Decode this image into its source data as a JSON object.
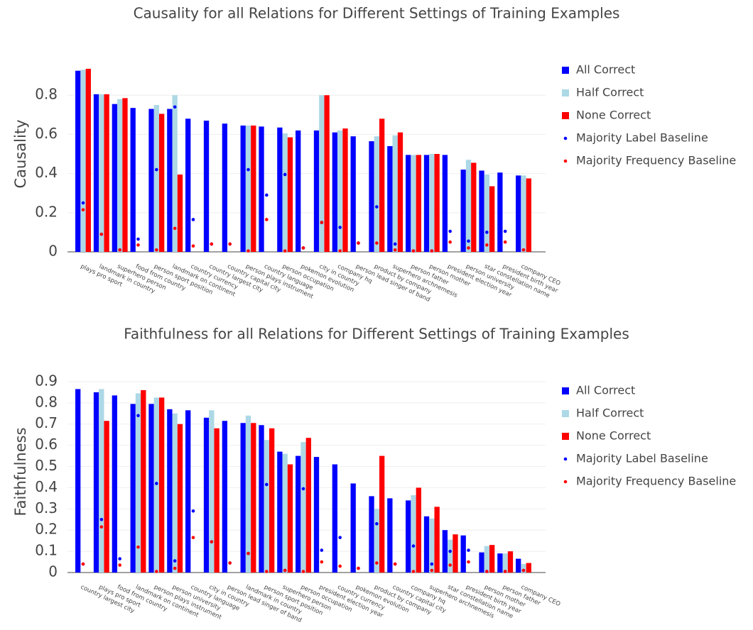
{
  "chart_data": [
    {
      "type": "bar",
      "title": "Causality for all Relations for Different Settings of Training Examples",
      "y_label": "Causality",
      "categories": [
        "plays pro sport",
        "landmark in country",
        "superhero person",
        "food from country",
        "person sport position",
        "landmark on continent",
        "country currency",
        "country largest city",
        "country capital city",
        "person plays instrument",
        "country language",
        "person occupation",
        "pokemon evolution",
        "city in country",
        "company hq",
        "person lead singer of band",
        "product by company",
        "superhero archnemesis",
        "person father",
        "person mother",
        "president election year",
        "person university",
        "star constellation name",
        "president birth year",
        "company CEO"
      ],
      "series": [
        {
          "name": "All Correct",
          "kind": "bar",
          "color": "#0000ff",
          "values": [
            0.925,
            0.805,
            0.755,
            0.735,
            0.73,
            0.73,
            0.68,
            0.67,
            0.655,
            0.645,
            0.64,
            0.635,
            0.62,
            0.62,
            0.61,
            0.59,
            0.565,
            0.54,
            0.495,
            0.495,
            0.495,
            0.42,
            0.415,
            0.405,
            0.39
          ]
        },
        {
          "name": "Half Correct",
          "kind": "bar",
          "color": "#add8e6",
          "values": [
            0.93,
            0.805,
            0.78,
            null,
            0.75,
            0.8,
            null,
            null,
            null,
            0.645,
            null,
            0.605,
            null,
            0.8,
            0.62,
            null,
            0.59,
            0.595,
            0.495,
            0.5,
            null,
            0.47,
            0.395,
            null,
            0.39
          ]
        },
        {
          "name": "None Correct",
          "kind": "bar",
          "color": "#ff0000",
          "values": [
            0.935,
            0.805,
            0.785,
            null,
            0.705,
            0.395,
            null,
            null,
            null,
            0.645,
            null,
            0.585,
            null,
            0.8,
            0.63,
            null,
            0.68,
            0.61,
            0.495,
            0.5,
            null,
            0.455,
            0.335,
            null,
            0.375
          ]
        },
        {
          "name": "Majority Label Baseline",
          "kind": "dot",
          "color": "#0000ff",
          "values": [
            0.25,
            0.09,
            0.01,
            0.065,
            0.42,
            0.74,
            0.165,
            0.04,
            0.04,
            0.42,
            0.29,
            0.395,
            0.02,
            0.15,
            0.125,
            0.045,
            0.23,
            0.04,
            0.005,
            0.005,
            0.105,
            0.055,
            0.1,
            0.105,
            0.01
          ]
        },
        {
          "name": "Majority Frequency Baseline",
          "kind": "dot",
          "color": "#ff0000",
          "values": [
            0.215,
            0.09,
            0.01,
            0.035,
            0.01,
            0.12,
            0.03,
            0.04,
            0.04,
            0.005,
            0.165,
            0.005,
            0.02,
            0.15,
            0.005,
            0.045,
            0.045,
            0.01,
            0.005,
            0.005,
            0.05,
            0.02,
            0.035,
            0.05,
            0.01
          ]
        }
      ],
      "ylim": [
        0,
        1.0
      ],
      "yticks": [
        0,
        0.2,
        0.4,
        0.6,
        0.8
      ],
      "grid": true
    },
    {
      "type": "bar",
      "title": "Faithfulness for all Relations for Different Settings of Training Examples",
      "y_label": "Faithfulness",
      "categories": [
        "country largest city",
        "plays pro sport",
        "food from country",
        "landmark on continent",
        "person plays instrument",
        "person university",
        "country language",
        "city in country",
        "person lead singer of band",
        "landmark in country",
        "person sport position",
        "superhero person",
        "person occupation",
        "president election year",
        "country currency",
        "pokemon evolution",
        "product by company",
        "country capital city",
        "company hq",
        "superhero archnemesis",
        "star constellation name",
        "president birth year",
        "person mother",
        "person father",
        "company CEO"
      ],
      "series": [
        {
          "name": "All Correct",
          "kind": "bar",
          "color": "#0000ff",
          "values": [
            0.865,
            0.85,
            0.835,
            0.795,
            0.795,
            0.77,
            0.765,
            0.73,
            0.715,
            0.705,
            0.695,
            0.57,
            0.55,
            0.545,
            0.51,
            0.42,
            0.36,
            0.35,
            0.34,
            0.265,
            0.2,
            0.175,
            0.095,
            0.09,
            0.065
          ]
        },
        {
          "name": "Half Correct",
          "kind": "bar",
          "color": "#add8e6",
          "values": [
            null,
            0.865,
            null,
            0.845,
            0.825,
            0.75,
            null,
            0.765,
            null,
            0.74,
            0.625,
            0.56,
            0.615,
            null,
            null,
            null,
            0.3,
            null,
            0.365,
            0.255,
            0.155,
            null,
            0.125,
            0.09,
            0.04
          ]
        },
        {
          "name": "None Correct",
          "kind": "bar",
          "color": "#ff0000",
          "values": [
            null,
            0.715,
            null,
            0.86,
            0.825,
            0.7,
            null,
            0.68,
            null,
            0.705,
            0.68,
            0.51,
            0.635,
            null,
            null,
            null,
            0.55,
            null,
            0.4,
            0.31,
            0.18,
            null,
            0.13,
            0.1,
            0.045
          ]
        },
        {
          "name": "Majority Label Baseline",
          "kind": "dot",
          "color": "#0000ff",
          "values": [
            0.04,
            0.25,
            0.065,
            0.74,
            0.42,
            0.055,
            0.29,
            0.145,
            0.045,
            0.09,
            0.415,
            0.01,
            0.395,
            0.105,
            0.165,
            0.02,
            0.23,
            0.04,
            0.125,
            0.04,
            0.1,
            0.105,
            0.005,
            0.005,
            0.01
          ]
        },
        {
          "name": "Majority Frequency Baseline",
          "kind": "dot",
          "color": "#ff0000",
          "values": [
            0.04,
            0.215,
            0.035,
            0.12,
            0.005,
            0.02,
            0.165,
            0.145,
            0.045,
            0.09,
            0.005,
            0.01,
            0.005,
            0.05,
            0.03,
            0.02,
            0.045,
            0.04,
            0.005,
            0.01,
            0.035,
            0.05,
            0.005,
            0.005,
            0.01
          ]
        }
      ],
      "ylim": [
        0,
        0.95
      ],
      "yticks": [
        0,
        0.1,
        0.2,
        0.3,
        0.4,
        0.5,
        0.6,
        0.7,
        0.8,
        0.9
      ],
      "grid": true
    }
  ]
}
